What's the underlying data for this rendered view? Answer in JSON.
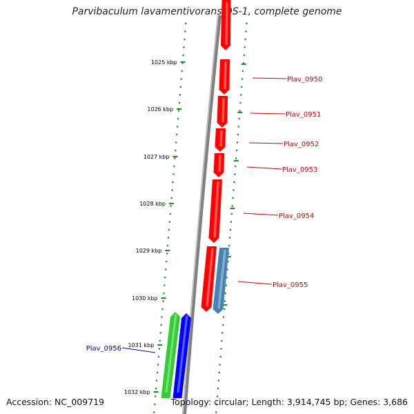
{
  "title": "Parvibaculum lavamentivorans DS-1, complete genome",
  "footer": {
    "accession": "Accession: NC_009719",
    "summary": "Topology: circular; Length: 3,914,745 bp; Genes: 3,686"
  },
  "axis": {
    "tick_labels": [
      "1025 kbp",
      "1026 kbp",
      "1027 kbp",
      "1028 kbp",
      "1029 kbp",
      "1030 kbp",
      "1031 kbp",
      "1032 kbp"
    ]
  },
  "genes": [
    {
      "label": "Plav_0950",
      "strand": "forward",
      "color": "#ff0000",
      "label_color": "#cc0000"
    },
    {
      "label": "Plav_0951",
      "strand": "forward",
      "color": "#ff0000",
      "label_color": "#cc0000"
    },
    {
      "label": "Plav_0952",
      "strand": "forward",
      "color": "#ff0000",
      "label_color": "#cc0000"
    },
    {
      "label": "Plav_0953",
      "strand": "forward",
      "color": "#ff0000",
      "label_color": "#cc0000"
    },
    {
      "label": "Plav_0954",
      "strand": "forward",
      "color": "#ff0000",
      "label_color": "#cc0000"
    },
    {
      "label": "Plav_0955",
      "strand": "reverse",
      "color": "#4682b4",
      "label_color": "#cc0000"
    },
    {
      "label": "Plav_0956",
      "strand": "reverse",
      "color": "#0000ff",
      "label_color": "#0000aa"
    }
  ],
  "colors": {
    "backbone": "#808080",
    "dotted_tracks": "#228b22",
    "red_gene": "#ff0000",
    "steelblue_gene": "#4682b4",
    "blue_gene": "#0000ff",
    "green_gene": "#33cc33"
  }
}
